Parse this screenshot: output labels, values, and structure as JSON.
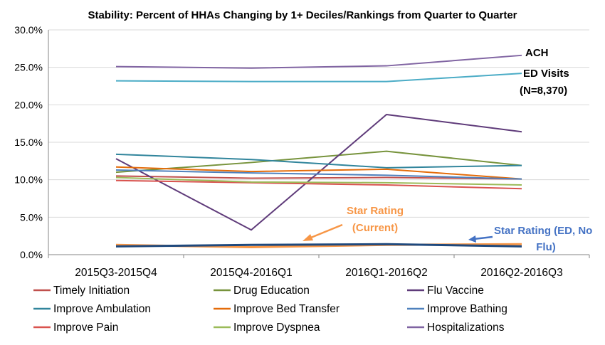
{
  "chart_data": {
    "type": "line",
    "title": "Stability: Percent of HHAs Changing by 1+ Deciles/Rankings from Quarter to Quarter",
    "xlabel": "",
    "ylabel": "",
    "categories": [
      "2015Q3-2015Q4",
      "2015Q4-2016Q1",
      "2016Q1-2016Q2",
      "2016Q2-2016Q3"
    ],
    "y_ticks": [
      "0.0%",
      "5.0%",
      "10.0%",
      "15.0%",
      "20.0%",
      "25.0%",
      "30.0%"
    ],
    "ylim": [
      0,
      30
    ],
    "grid": true,
    "legend_position": "bottom",
    "series": [
      {
        "name": "Timely Initiation",
        "color": "#c0504d",
        "values": [
          10.5,
          10.2,
          10.3,
          10.1
        ]
      },
      {
        "name": "Drug Education",
        "color": "#77933c",
        "values": [
          11.0,
          12.3,
          13.8,
          11.9
        ]
      },
      {
        "name": "Flu Vaccine",
        "color": "#5f3b7a",
        "values": [
          12.8,
          3.3,
          18.7,
          16.4
        ]
      },
      {
        "name": "Improve Ambulation",
        "color": "#31859c",
        "values": [
          13.4,
          12.7,
          11.6,
          11.9
        ]
      },
      {
        "name": "Improve Bed Transfer",
        "color": "#e46c0a",
        "values": [
          11.7,
          11.1,
          11.4,
          10.1
        ]
      },
      {
        "name": "Improve Bathing",
        "color": "#4f81bd",
        "values": [
          11.3,
          10.9,
          10.6,
          10.1
        ]
      },
      {
        "name": "Improve Pain",
        "color": "#d9534f",
        "values": [
          9.9,
          9.6,
          9.3,
          8.8
        ]
      },
      {
        "name": "Improve Dyspnea",
        "color": "#9bbb59",
        "values": [
          10.3,
          9.7,
          9.6,
          9.3
        ]
      },
      {
        "name": "Hospitalizations",
        "color": "#8064a2",
        "values": [
          25.1,
          24.9,
          25.2,
          26.6
        ]
      },
      {
        "name": "",
        "color": "#4bacc6",
        "values": [
          23.2,
          23.1,
          23.1,
          24.2
        ]
      },
      {
        "name": "",
        "color": "#f79646",
        "values": [
          1.3,
          1.0,
          1.3,
          1.4
        ]
      },
      {
        "name": "",
        "color": "#1f497d",
        "values": [
          1.1,
          1.3,
          1.4,
          1.1
        ]
      }
    ],
    "annotations": [
      {
        "text": "ACH"
      },
      {
        "text": "ED Visits"
      },
      {
        "text": "(N=8,370)"
      },
      {
        "text": "Star Rating"
      },
      {
        "text": "(Current)"
      },
      {
        "text": "Star Rating (ED, No"
      },
      {
        "text": "Flu)"
      }
    ],
    "annotation_colors": {
      "dark": "#000000",
      "orange": "#f79646",
      "blue": "#4472c4"
    }
  }
}
